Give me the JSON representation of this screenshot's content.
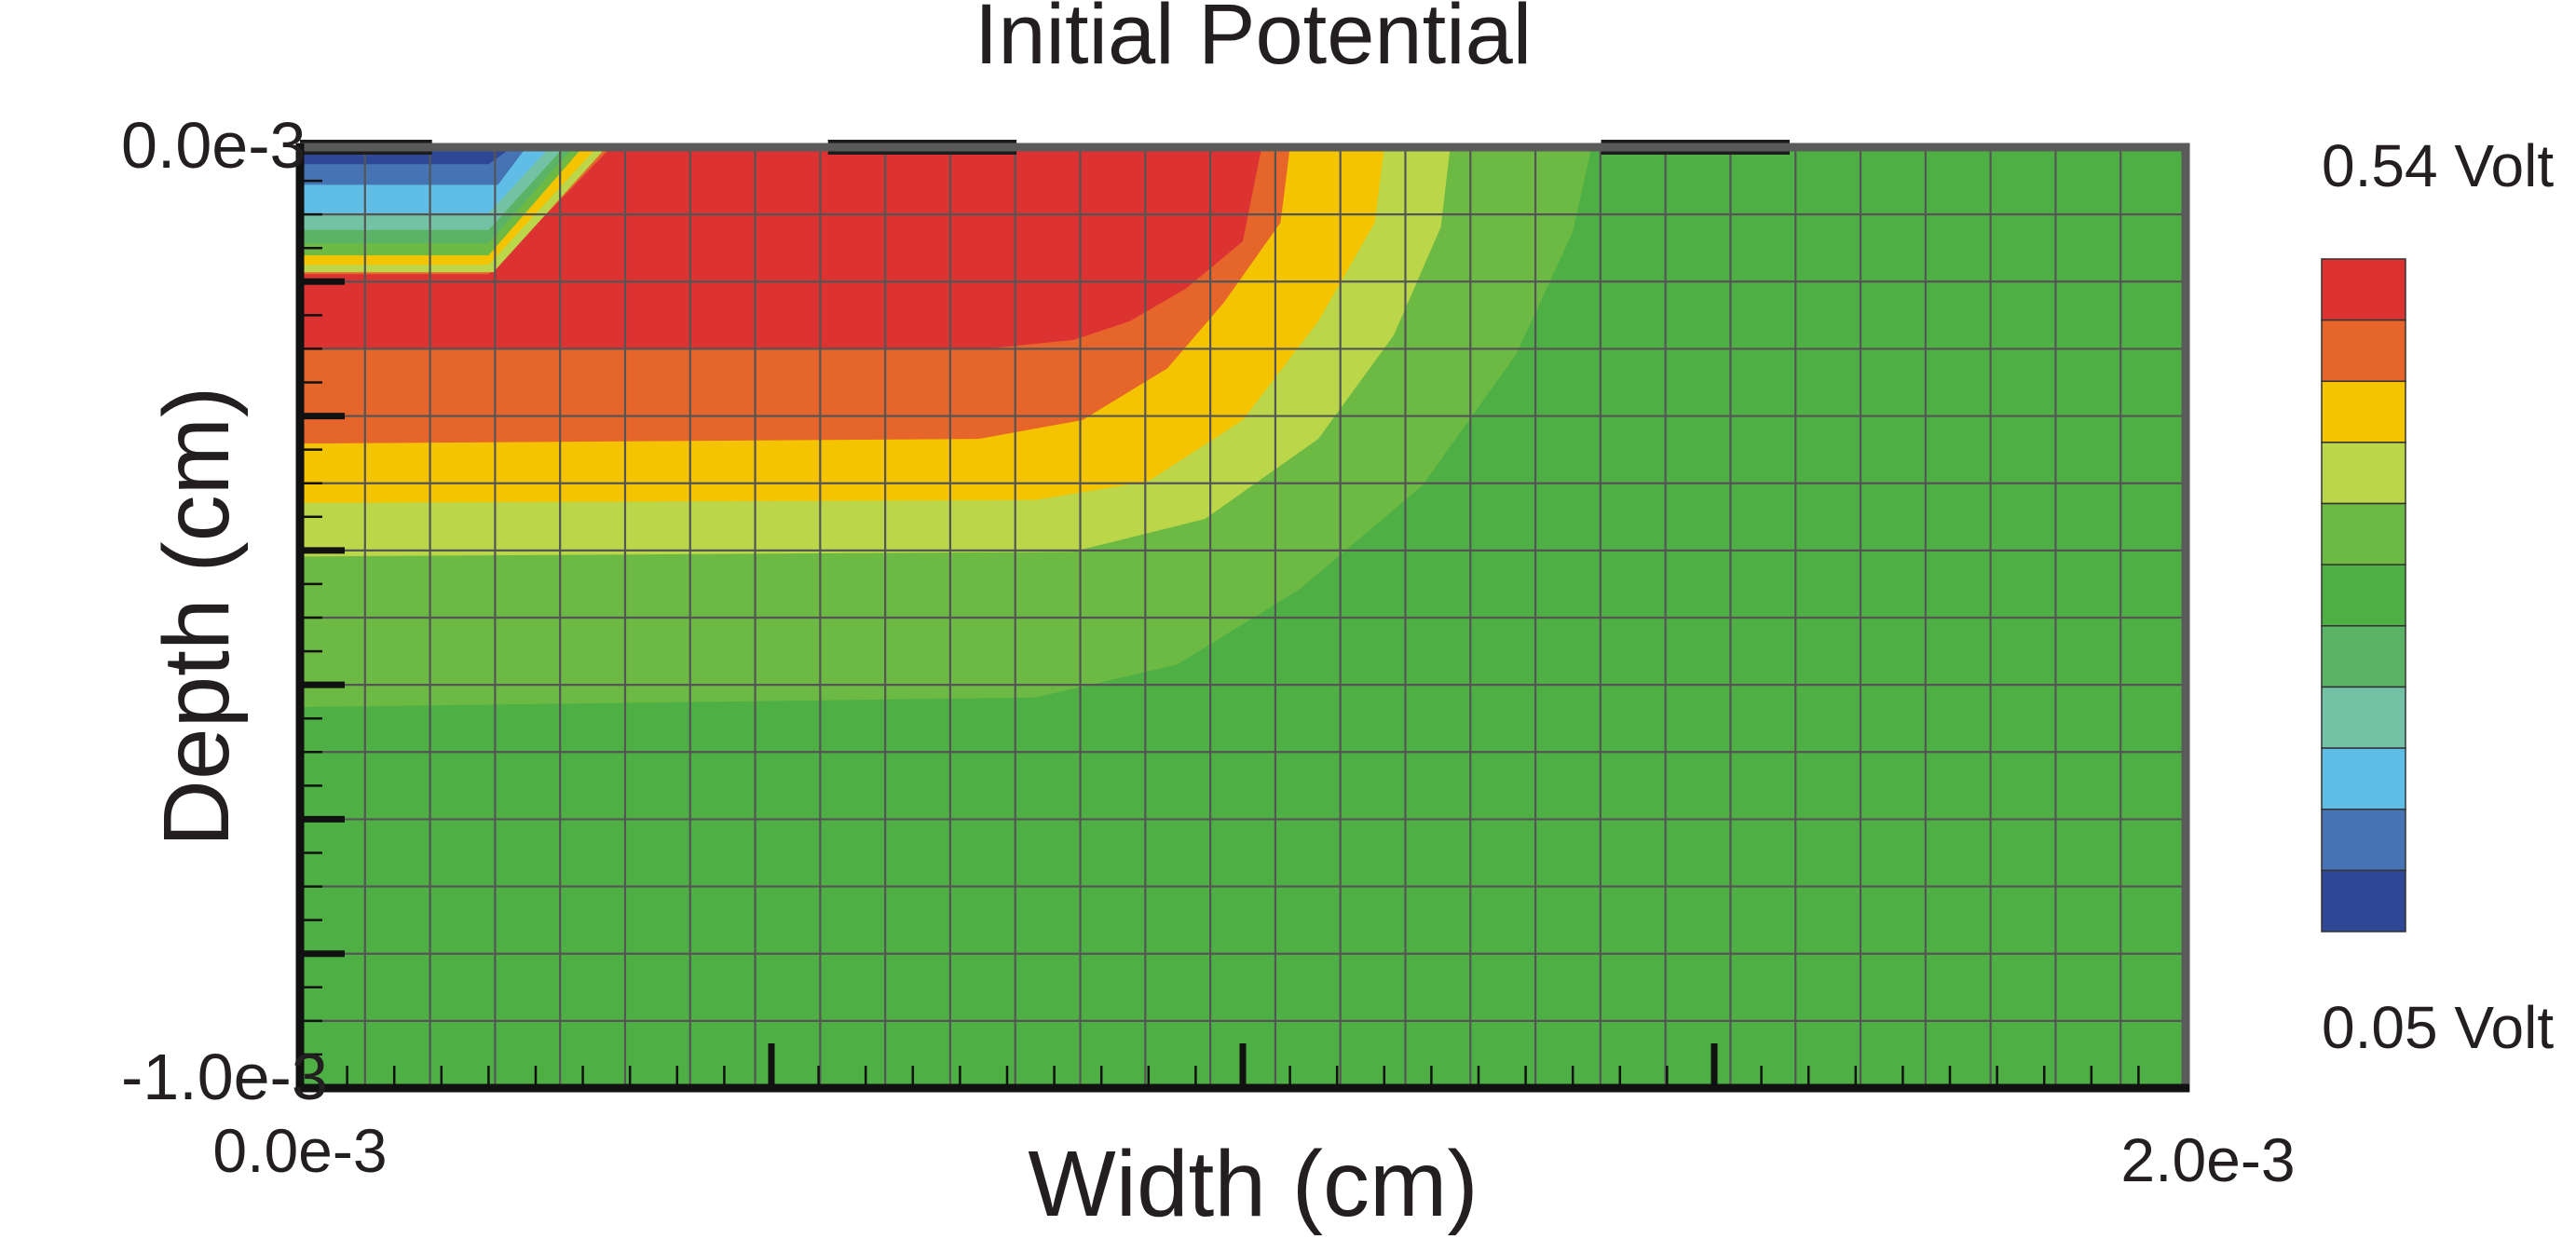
{
  "chart_data": {
    "type": "heatmap",
    "subtype": "filled-contour",
    "title": "Initial Potential",
    "xlabel": "Width (cm)",
    "ylabel": "Depth (cm)",
    "x_tick_labels": [
      "0.0e-3",
      "2.0e-3"
    ],
    "y_tick_labels": [
      "0.0e-3",
      "-1.0e-3"
    ],
    "xlim": [
      0.0,
      0.002
    ],
    "ylim": [
      -0.001,
      0.0
    ],
    "grid": true,
    "legend": {
      "placement": "right",
      "max_label": "0.54 Volt",
      "min_label": "0.05 Volt",
      "colors_top_to_bottom": [
        "#dc3232",
        "#e5652b",
        "#f5c400",
        "#bcd64a",
        "#6cb944",
        "#4eb044",
        "#5bb466",
        "#74c2a5",
        "#60bde6",
        "#4673b4",
        "#2e4896"
      ]
    },
    "contact_pads": [
      {
        "x0": 0.0,
        "x1": 0.00014
      },
      {
        "x0": 0.00056,
        "x1": 0.00076
      },
      {
        "x0": 0.00138,
        "x1": 0.00158
      }
    ],
    "contours_note": "Each region lists the boundary of the area at or above that level, in (x cm, y cm).",
    "contour_levels": [
      {
        "color": "#6cb944",
        "points": [
          [
            0.0,
            0.0
          ],
          [
            0.00137,
            0.0
          ],
          [
            0.00135,
            -9e-05
          ],
          [
            0.00129,
            -0.00022
          ],
          [
            0.00119,
            -0.00036
          ],
          [
            0.00106,
            -0.00047
          ],
          [
            0.00093,
            -0.00055
          ],
          [
            0.00078,
            -0.000585
          ],
          [
            0.0,
            -0.000595
          ]
        ]
      },
      {
        "color": "#bcd64a",
        "points": [
          [
            0.0,
            0.0
          ],
          [
            0.00122,
            0.0
          ],
          [
            0.00121,
            -8.5e-05
          ],
          [
            0.00116,
            -0.0002
          ],
          [
            0.00108,
            -0.00031
          ],
          [
            0.00096,
            -0.000395
          ],
          [
            0.00082,
            -0.00043
          ],
          [
            0.0,
            -0.000435
          ]
        ]
      },
      {
        "color": "#f5c400",
        "points": [
          [
            0.0,
            0.0
          ],
          [
            0.00115,
            0.0
          ],
          [
            0.00114,
            -8e-05
          ],
          [
            0.00108,
            -0.000185
          ],
          [
            0.001,
            -0.00029
          ],
          [
            0.0009,
            -0.000355
          ],
          [
            0.00078,
            -0.000375
          ],
          [
            0.0,
            -0.000378
          ]
        ]
      },
      {
        "color": "#e5652b",
        "points": [
          [
            0.0,
            0.0
          ],
          [
            0.00105,
            0.0
          ],
          [
            0.00104,
            -8e-05
          ],
          [
            0.00098,
            -0.000165
          ],
          [
            0.00092,
            -0.000235
          ],
          [
            0.00083,
            -0.00029
          ],
          [
            0.00072,
            -0.00031
          ],
          [
            0.0,
            -0.000315
          ]
        ]
      },
      {
        "color": "#dc3232",
        "points": [
          [
            0.00033,
            0.0
          ],
          [
            0.00102,
            0.0
          ],
          [
            0.001,
            -0.0001
          ],
          [
            0.00094,
            -0.00015
          ],
          [
            0.00088,
            -0.000185
          ],
          [
            0.00082,
            -0.000205
          ],
          [
            0.00072,
            -0.000215
          ],
          [
            0.0,
            -0.000215
          ],
          [
            0.0,
            -0.000135
          ],
          [
            0.0002,
            -0.000135
          ]
        ]
      },
      {
        "color": "#bcd64a",
        "points": [
          [
            0.0,
            0.0
          ],
          [
            0.000325,
            0.0
          ],
          [
            0.000205,
            -0.000133
          ],
          [
            0.0,
            -0.000133
          ]
        ]
      },
      {
        "color": "#f5c400",
        "points": [
          [
            0.0,
            0.0
          ],
          [
            0.000315,
            0.0
          ],
          [
            0.0002,
            -0.000125
          ],
          [
            0.0,
            -0.000125
          ]
        ]
      },
      {
        "color": "#6cb944",
        "points": [
          [
            0.0,
            0.0
          ],
          [
            0.0003,
            0.0
          ],
          [
            0.0002,
            -0.000115
          ],
          [
            0.0,
            -0.000115
          ]
        ]
      },
      {
        "color": "#5bb466",
        "points": [
          [
            0.0,
            0.0
          ],
          [
            0.00029,
            0.0
          ],
          [
            0.0002,
            -0.000102
          ],
          [
            0.0,
            -0.000102
          ]
        ]
      },
      {
        "color": "#74c2a5",
        "points": [
          [
            0.0,
            0.0
          ],
          [
            0.00028,
            0.0
          ],
          [
            0.0002,
            -8.8e-05
          ],
          [
            0.0,
            -8.8e-05
          ]
        ]
      },
      {
        "color": "#60bde6",
        "points": [
          [
            0.0,
            0.0
          ],
          [
            0.000265,
            0.0
          ],
          [
            0.0002,
            -7e-05
          ],
          [
            0.0,
            -7e-05
          ]
        ]
      },
      {
        "color": "#4673b4",
        "points": [
          [
            0.0,
            0.0
          ],
          [
            0.00024,
            0.0
          ],
          [
            0.00021,
            -4e-05
          ],
          [
            0.0,
            -4e-05
          ]
        ]
      },
      {
        "color": "#2e4896",
        "points": [
          [
            0.0,
            0.0
          ],
          [
            0.000225,
            0.0
          ],
          [
            0.0002,
            -1.8e-05
          ],
          [
            0.0,
            -1.8e-05
          ]
        ]
      }
    ],
    "base_color": "#4eb044"
  }
}
